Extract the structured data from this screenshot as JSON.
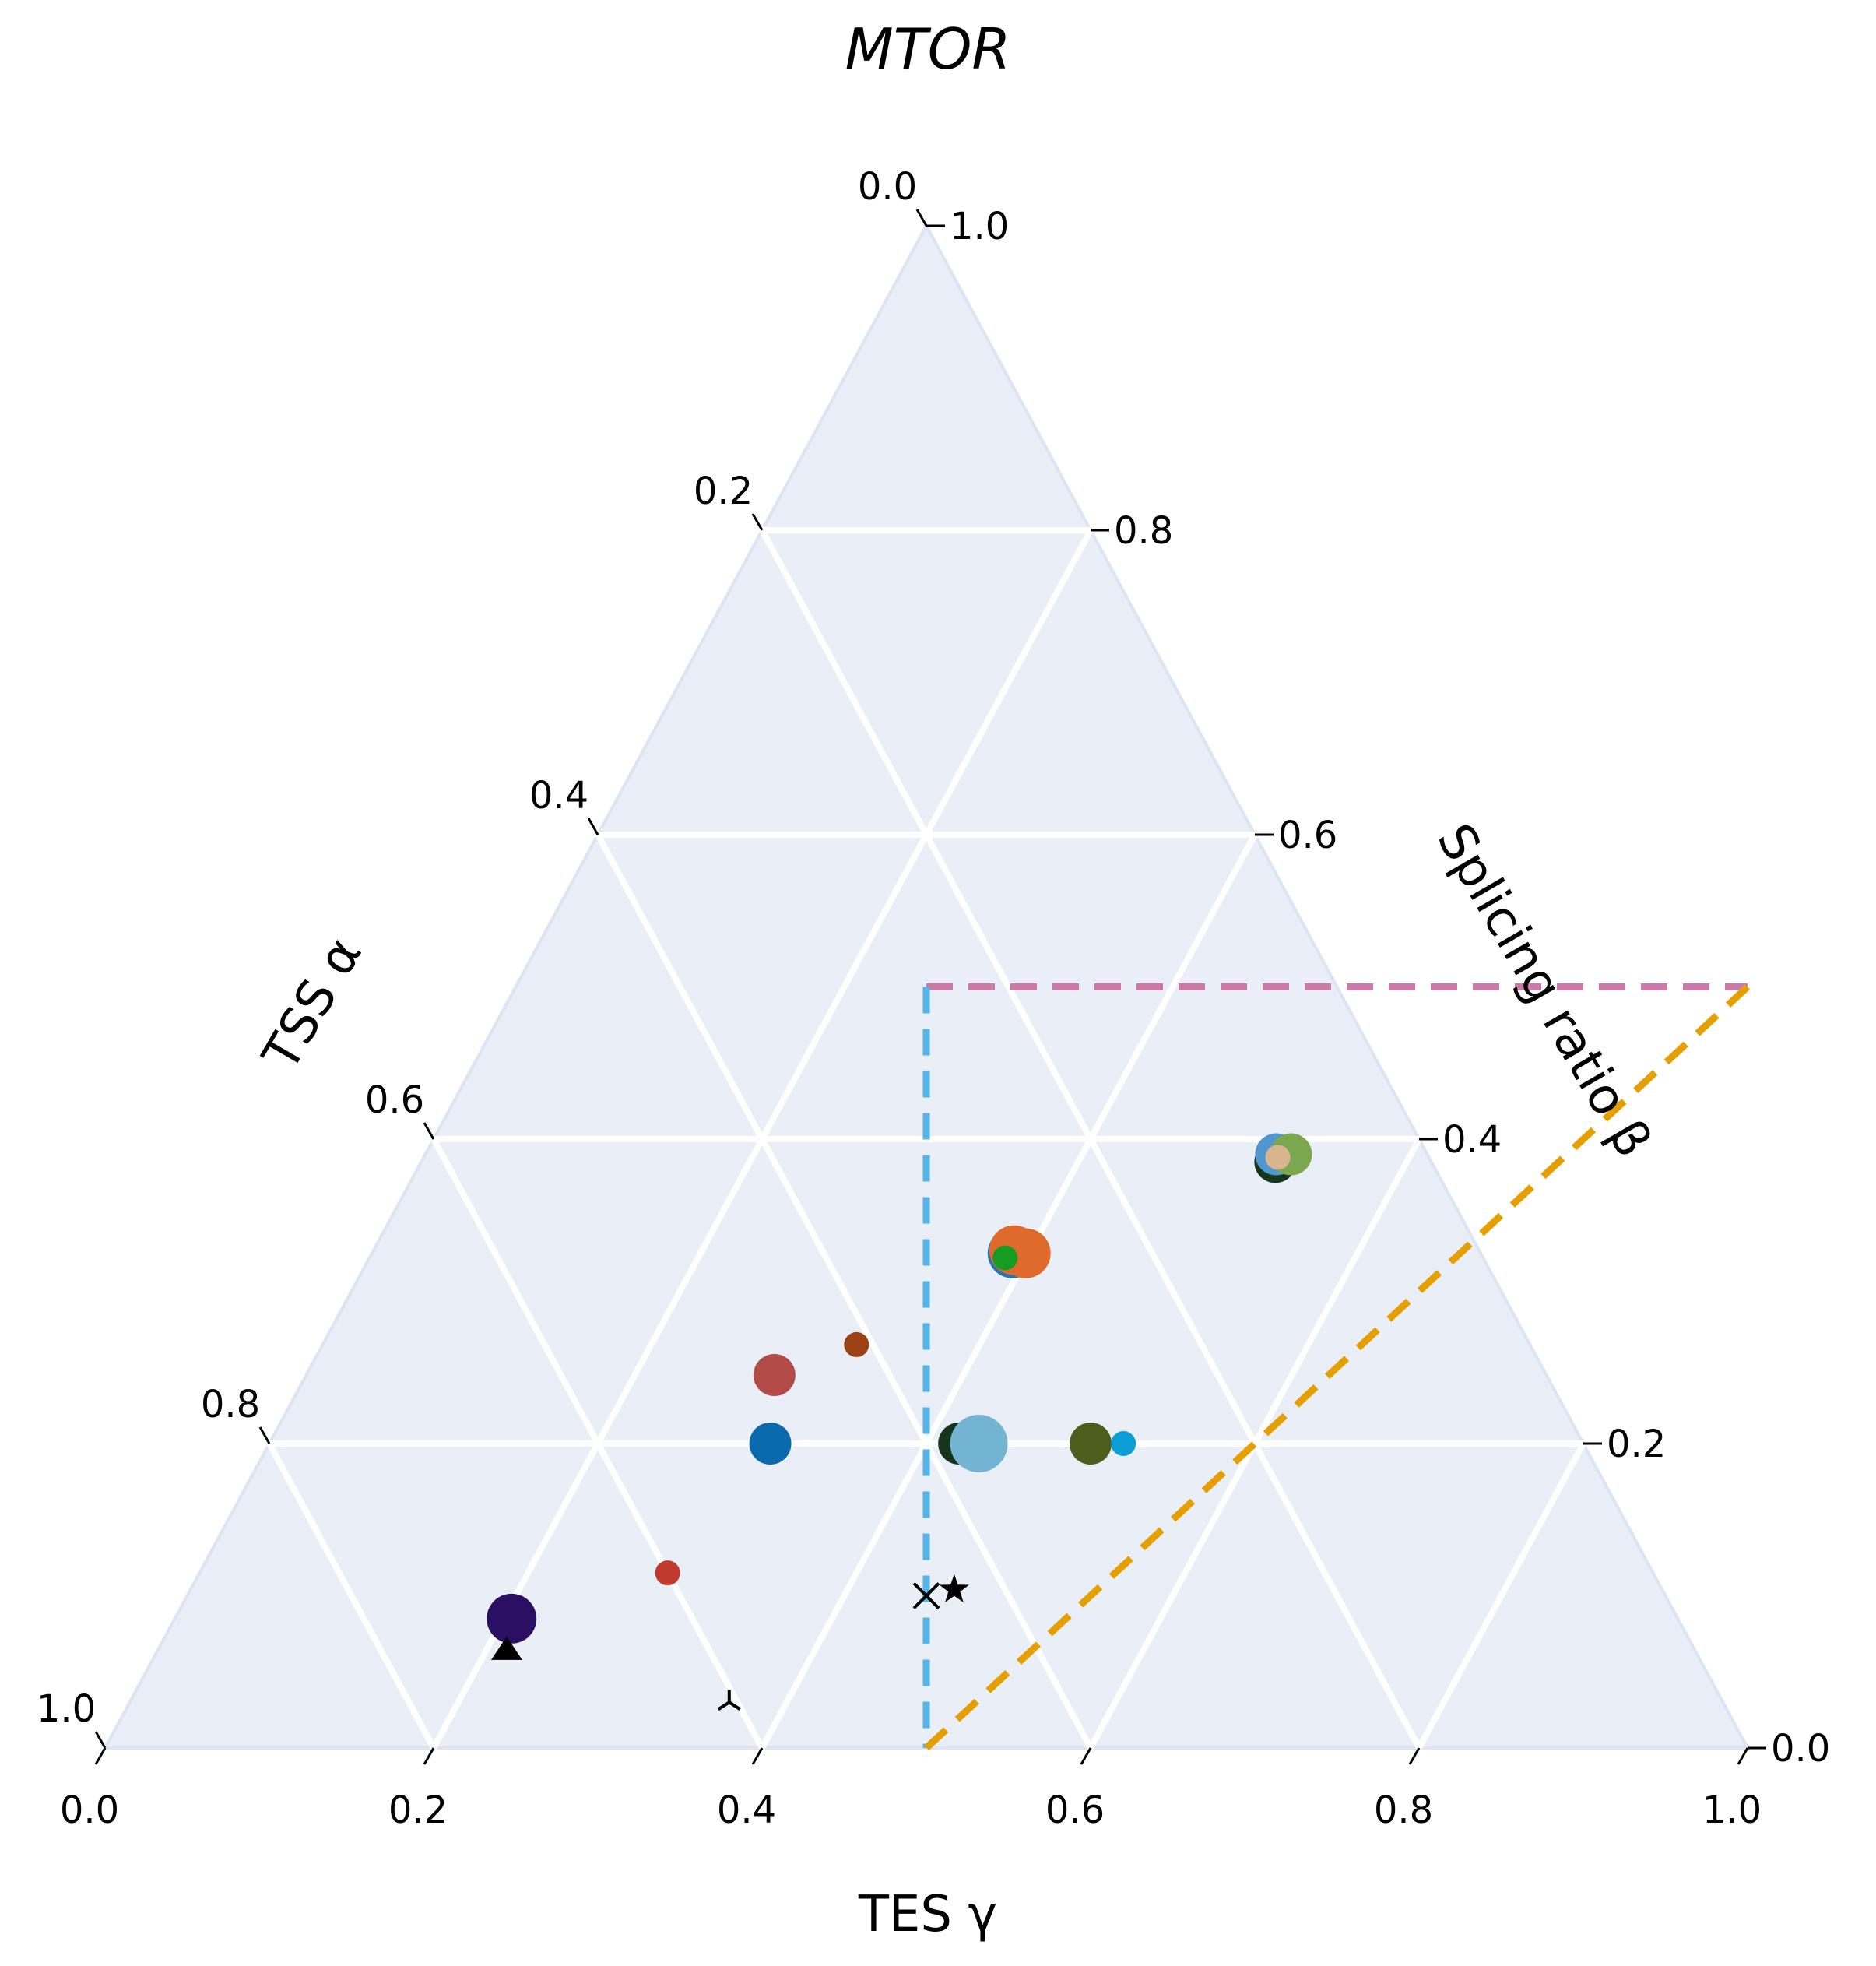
{
  "chart_data": {
    "type": "scatter",
    "subtype": "ternary",
    "title": "MTOR",
    "axes": {
      "bottom": {
        "label": "TES γ",
        "ticks": [
          "0.0",
          "0.2",
          "0.4",
          "0.6",
          "0.8",
          "1.0"
        ]
      },
      "right": {
        "label": "Splicing ratio β",
        "ticks": [
          "0.0",
          "0.2",
          "0.4",
          "0.6",
          "0.8",
          "1.0"
        ]
      },
      "left": {
        "label": "TSS α",
        "ticks": [
          "0.0",
          "0.2",
          "0.4",
          "0.6",
          "0.8",
          "1.0"
        ]
      }
    },
    "ranges": {
      "alpha": [
        0,
        1
      ],
      "beta": [
        0,
        1
      ],
      "gamma": [
        0,
        1
      ]
    },
    "grid": true,
    "grid_step": 0.2,
    "background_color": "#e9eef7",
    "grid_color": "#ffffff",
    "reference_lines": [
      {
        "name": "beta-line",
        "color": "#cc79a7",
        "style": "dashed",
        "from": {
          "beta": 0.5,
          "gamma": 0.25
        },
        "to": {
          "beta": 0.5,
          "gamma": 0.75
        }
      },
      {
        "name": "alpha-line",
        "color": "#56b4e9",
        "style": "dashed",
        "from": {
          "beta": 0.5,
          "gamma": 0.25
        },
        "to": {
          "beta": 0.0,
          "gamma": 0.5
        }
      },
      {
        "name": "gamma-line",
        "color": "#e69f00",
        "style": "dashed",
        "from": {
          "beta": 0.5,
          "gamma": 0.75
        },
        "to": {
          "beta": 0.0,
          "gamma": 0.5
        }
      }
    ],
    "points": [
      {
        "beta": 0.325,
        "gamma": 0.39,
        "color": "#1f78b4",
        "size": "large",
        "marker": "circle"
      },
      {
        "beta": 0.325,
        "gamma": 0.398,
        "color": "#e06a2b",
        "size": "large",
        "marker": "circle"
      },
      {
        "beta": 0.327,
        "gamma": 0.39,
        "color": "#e06a2b",
        "size": "large",
        "marker": "circle"
      },
      {
        "beta": 0.322,
        "gamma": 0.387,
        "color": "#179c22",
        "size": "small",
        "marker": "circle"
      },
      {
        "beta": 0.385,
        "gamma": 0.515,
        "color": "#e64da0",
        "size": "small",
        "marker": "circle"
      },
      {
        "beta": 0.385,
        "gamma": 0.52,
        "color": "#17341c",
        "size": "medium",
        "marker": "circle"
      },
      {
        "beta": 0.39,
        "gamma": 0.518,
        "color": "#4f97ce",
        "size": "medium",
        "marker": "circle"
      },
      {
        "beta": 0.39,
        "gamma": 0.527,
        "color": "#7ba84f",
        "size": "medium",
        "marker": "circle"
      },
      {
        "beta": 0.388,
        "gamma": 0.52,
        "color": "#d8b58f",
        "size": "small",
        "marker": "circle"
      },
      {
        "beta": 0.265,
        "gamma": 0.325,
        "color": "#9b4113",
        "size": "small",
        "marker": "circle"
      },
      {
        "beta": 0.245,
        "gamma": 0.285,
        "color": "#b24a48",
        "size": "medium",
        "marker": "circle"
      },
      {
        "beta": 0.2,
        "gamma": 0.305,
        "color": "#0a6aad",
        "size": "medium",
        "marker": "circle"
      },
      {
        "beta": 0.2,
        "gamma": 0.435,
        "color": "#c0392b",
        "size": "medium",
        "marker": "circle"
      },
      {
        "beta": 0.2,
        "gamma": 0.42,
        "color": "#17341c",
        "size": "medium",
        "marker": "circle"
      },
      {
        "beta": 0.2,
        "gamma": 0.432,
        "color": "#72b4d1",
        "size": "xlarge",
        "marker": "circle"
      },
      {
        "beta": 0.2,
        "gamma": 0.5,
        "color": "#4b5e1b",
        "size": "medium",
        "marker": "circle"
      },
      {
        "beta": 0.2,
        "gamma": 0.52,
        "color": "#0d9ed5",
        "size": "small",
        "marker": "circle"
      },
      {
        "beta": 0.115,
        "gamma": 0.285,
        "color": "#c0392b",
        "size": "small",
        "marker": "circle"
      },
      {
        "beta": 0.085,
        "gamma": 0.205,
        "color": "#2b0f63",
        "size": "large",
        "marker": "circle"
      },
      {
        "beta": 0.065,
        "gamma": 0.212,
        "color": "#000000",
        "size": "small",
        "marker": "triangle"
      },
      {
        "beta": 0.1,
        "gamma": 0.45,
        "color": "#000000",
        "size": "small",
        "marker": "x"
      },
      {
        "beta": 0.104,
        "gamma": 0.465,
        "color": "#000000",
        "size": "small",
        "marker": "star"
      },
      {
        "beta": 0.03,
        "gamma": 0.365,
        "color": "#000000",
        "size": "small",
        "marker": "tri_down"
      }
    ]
  }
}
